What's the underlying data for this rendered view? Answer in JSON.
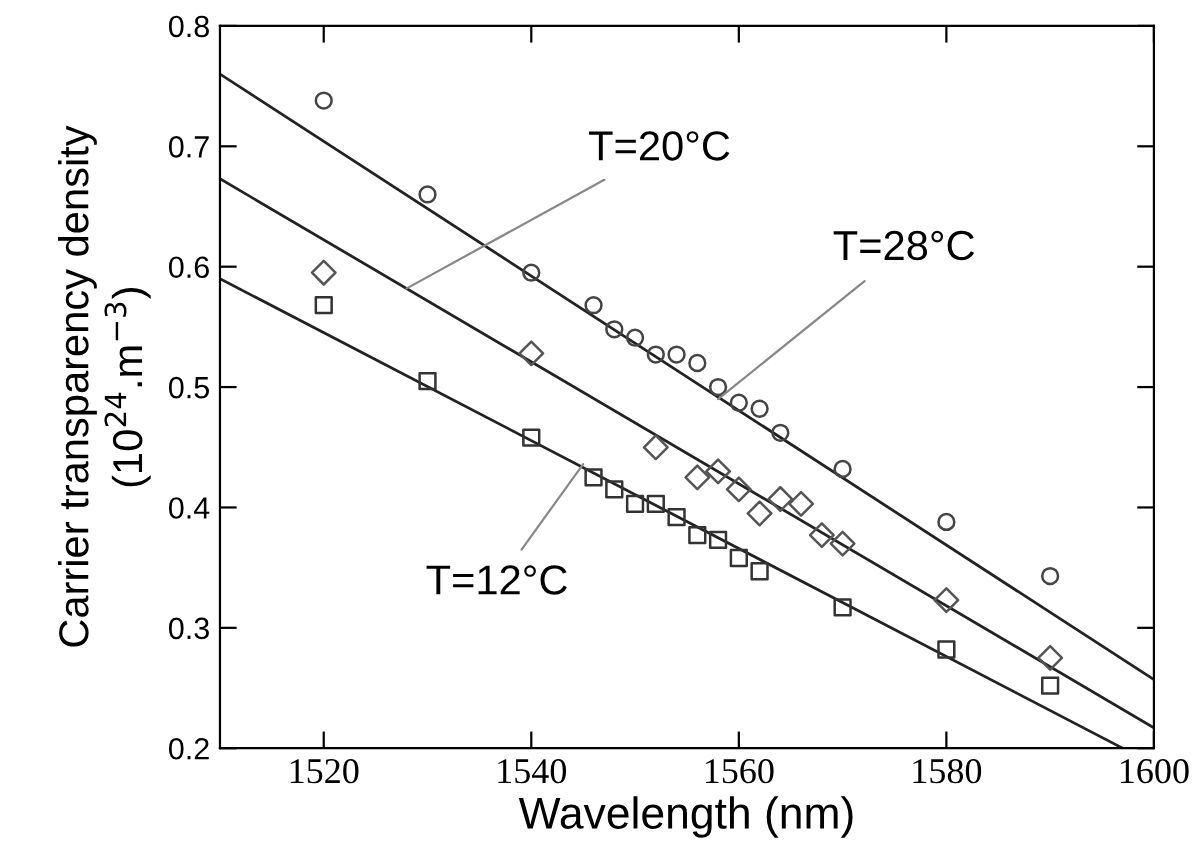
{
  "chart_data": {
    "type": "scatter",
    "xlabel": "Wavelength (nm)",
    "ylabel": "Carrier transparency density\n(10$^{24}$.m$^{−3}$)",
    "xlim": [
      1510,
      1600
    ],
    "ylim": [
      0.2,
      0.8
    ],
    "xticks": [
      1520,
      1540,
      1560,
      1580,
      1600
    ],
    "yticks": [
      {
        "value": 0.2,
        "label": "0.2"
      },
      {
        "value": 0.3,
        "label": "0.3"
      },
      {
        "value": 0.4,
        "label": "0.4"
      },
      {
        "value": 0.5,
        "label": "0.5"
      },
      {
        "value": 0.6,
        "label": "0.6"
      },
      {
        "value": 0.7,
        "label": "0.7"
      },
      {
        "value": 0.8,
        "label": "0.8"
      }
    ],
    "grid": false,
    "legend": false,
    "series": [
      {
        "marker": "circle",
        "color": "#444444",
        "x": [
          1520,
          1530,
          1540,
          1546,
          1548,
          1550,
          1552,
          1554,
          1556,
          1558,
          1560,
          1562,
          1564,
          1570,
          1580,
          1590
        ],
        "values": [
          0.738,
          0.66,
          0.595,
          0.568,
          0.548,
          0.541,
          0.527,
          0.527,
          0.52,
          0.5,
          0.487,
          0.482,
          0.462,
          0.432,
          0.388,
          0.343
        ]
      },
      {
        "marker": "diamond",
        "color": "#555555",
        "x": [
          1520,
          1540,
          1552,
          1556,
          1558,
          1560,
          1562,
          1564,
          1566,
          1568,
          1570,
          1580,
          1590
        ],
        "values": [
          0.595,
          0.528,
          0.45,
          0.425,
          0.43,
          0.415,
          0.395,
          0.407,
          0.403,
          0.377,
          0.37,
          0.323,
          0.275
        ]
      },
      {
        "marker": "square",
        "color": "#333333",
        "x": [
          1520,
          1530,
          1540,
          1546,
          1548,
          1550,
          1552,
          1554,
          1556,
          1558,
          1560,
          1562,
          1570,
          1580,
          1590
        ],
        "values": [
          0.568,
          0.505,
          0.458,
          0.425,
          0.415,
          0.403,
          0.403,
          0.392,
          0.377,
          0.373,
          0.358,
          0.347,
          0.317,
          0.282,
          0.252
        ]
      },
      {
        "type": "line",
        "marker": "none",
        "color": "#222222",
        "x": [
          1510,
          1600
        ],
        "values": [
          0.76,
          0.257
        ]
      },
      {
        "type": "line",
        "marker": "none",
        "color": "#222222",
        "x": [
          1510,
          1600
        ],
        "values": [
          0.673,
          0.217
        ]
      },
      {
        "type": "line",
        "marker": "none",
        "color": "#222222",
        "x": [
          1510,
          1597
        ],
        "values": [
          0.59,
          0.2
        ]
      }
    ],
    "annotations": [
      {
        "text": "T=20°C",
        "x": 1528,
        "y": 0.582
      },
      {
        "text": "T=28°C",
        "x": 1558,
        "y": 0.49
      },
      {
        "text": "T=12°C",
        "x": 1545,
        "y": 0.436
      }
    ]
  }
}
